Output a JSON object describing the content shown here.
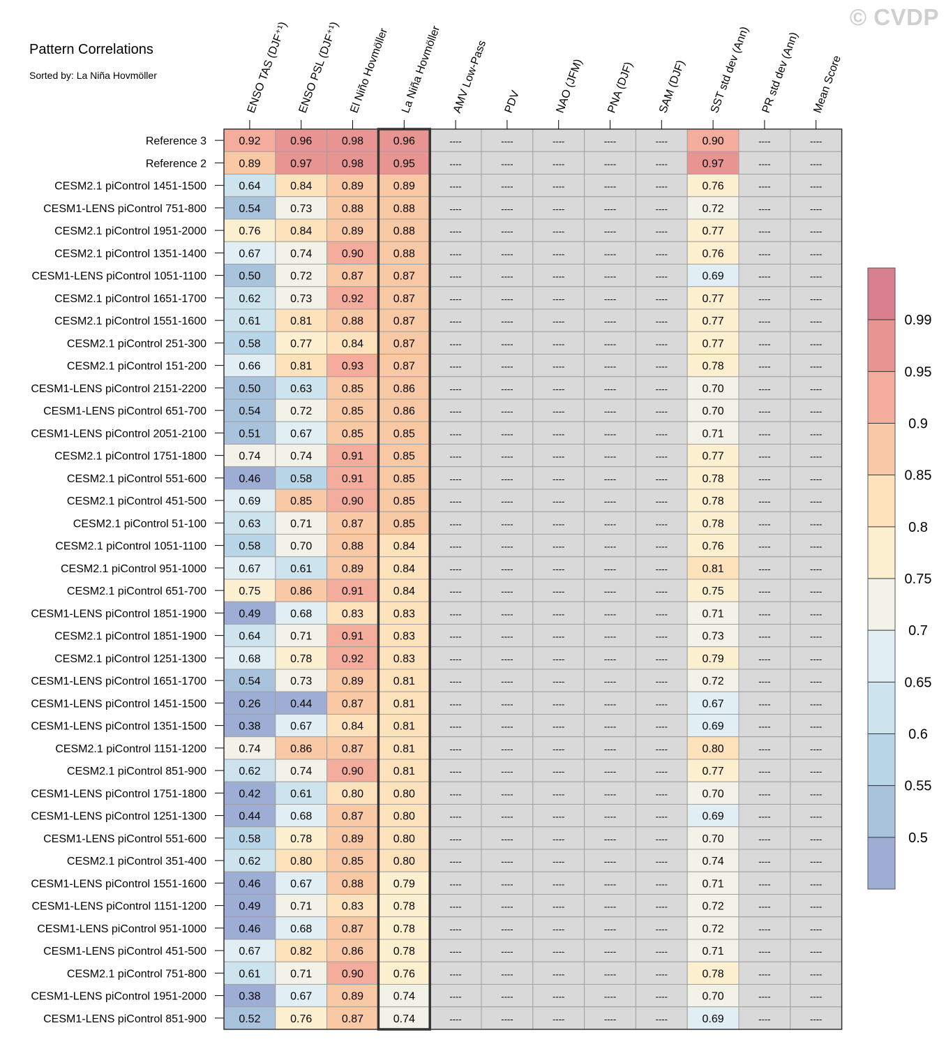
{
  "watermark": "© CVDP",
  "chart_data": {
    "type": "table",
    "title": "Pattern Correlations",
    "subtitle": "Sorted by: La Niña Hovmöller",
    "columns": [
      "ENSO TAS (DJF⁺¹)",
      "ENSO PSL (DJF⁺¹)",
      "El Niño Hovmöller",
      "La Niña Hovmöller",
      "AMV Low-Pass",
      "PDV",
      "NAO (JFM)",
      "PNA (DJF)",
      "SAM (DJF)",
      "SST std dev (Ann)",
      "PR std dev (Ann)",
      "Mean Score"
    ],
    "highlighted_column": "La Niña Hovmöller",
    "missing_label": "----",
    "rows": [
      {
        "label": "Reference 3",
        "values": [
          "0.92",
          "0.96",
          "0.98",
          "0.96",
          null,
          null,
          null,
          null,
          null,
          "0.90",
          null,
          null
        ]
      },
      {
        "label": "Reference 2",
        "values": [
          "0.89",
          "0.97",
          "0.98",
          "0.95",
          null,
          null,
          null,
          null,
          null,
          "0.97",
          null,
          null
        ]
      },
      {
        "label": "CESM2.1 piControl 1451-1500",
        "values": [
          "0.64",
          "0.84",
          "0.89",
          "0.89",
          null,
          null,
          null,
          null,
          null,
          "0.76",
          null,
          null
        ]
      },
      {
        "label": "CESM1-LENS piControl 751-800",
        "values": [
          "0.54",
          "0.73",
          "0.88",
          "0.88",
          null,
          null,
          null,
          null,
          null,
          "0.72",
          null,
          null
        ]
      },
      {
        "label": "CESM2.1 piControl 1951-2000",
        "values": [
          "0.76",
          "0.84",
          "0.89",
          "0.88",
          null,
          null,
          null,
          null,
          null,
          "0.77",
          null,
          null
        ]
      },
      {
        "label": "CESM2.1 piControl 1351-1400",
        "values": [
          "0.67",
          "0.74",
          "0.90",
          "0.88",
          null,
          null,
          null,
          null,
          null,
          "0.76",
          null,
          null
        ]
      },
      {
        "label": "CESM1-LENS piControl 1051-1100",
        "values": [
          "0.50",
          "0.72",
          "0.87",
          "0.87",
          null,
          null,
          null,
          null,
          null,
          "0.69",
          null,
          null
        ]
      },
      {
        "label": "CESM2.1 piControl 1651-1700",
        "values": [
          "0.62",
          "0.73",
          "0.92",
          "0.87",
          null,
          null,
          null,
          null,
          null,
          "0.77",
          null,
          null
        ]
      },
      {
        "label": "CESM2.1 piControl 1551-1600",
        "values": [
          "0.61",
          "0.81",
          "0.88",
          "0.87",
          null,
          null,
          null,
          null,
          null,
          "0.77",
          null,
          null
        ]
      },
      {
        "label": "CESM2.1 piControl 251-300",
        "values": [
          "0.58",
          "0.77",
          "0.84",
          "0.87",
          null,
          null,
          null,
          null,
          null,
          "0.77",
          null,
          null
        ]
      },
      {
        "label": "CESM2.1 piControl 151-200",
        "values": [
          "0.66",
          "0.81",
          "0.93",
          "0.87",
          null,
          null,
          null,
          null,
          null,
          "0.78",
          null,
          null
        ]
      },
      {
        "label": "CESM1-LENS piControl 2151-2200",
        "values": [
          "0.50",
          "0.63",
          "0.85",
          "0.86",
          null,
          null,
          null,
          null,
          null,
          "0.70",
          null,
          null
        ]
      },
      {
        "label": "CESM1-LENS piControl 651-700",
        "values": [
          "0.54",
          "0.72",
          "0.85",
          "0.86",
          null,
          null,
          null,
          null,
          null,
          "0.70",
          null,
          null
        ]
      },
      {
        "label": "CESM1-LENS piControl 2051-2100",
        "values": [
          "0.51",
          "0.67",
          "0.85",
          "0.85",
          null,
          null,
          null,
          null,
          null,
          "0.71",
          null,
          null
        ]
      },
      {
        "label": "CESM2.1 piControl 1751-1800",
        "values": [
          "0.74",
          "0.74",
          "0.91",
          "0.85",
          null,
          null,
          null,
          null,
          null,
          "0.77",
          null,
          null
        ]
      },
      {
        "label": "CESM2.1 piControl 551-600",
        "values": [
          "0.46",
          "0.58",
          "0.91",
          "0.85",
          null,
          null,
          null,
          null,
          null,
          "0.78",
          null,
          null
        ]
      },
      {
        "label": "CESM2.1 piControl 451-500",
        "values": [
          "0.69",
          "0.85",
          "0.90",
          "0.85",
          null,
          null,
          null,
          null,
          null,
          "0.78",
          null,
          null
        ]
      },
      {
        "label": "CESM2.1 piControl 51-100",
        "values": [
          "0.63",
          "0.71",
          "0.87",
          "0.85",
          null,
          null,
          null,
          null,
          null,
          "0.78",
          null,
          null
        ]
      },
      {
        "label": "CESM2.1 piControl 1051-1100",
        "values": [
          "0.58",
          "0.70",
          "0.88",
          "0.84",
          null,
          null,
          null,
          null,
          null,
          "0.76",
          null,
          null
        ]
      },
      {
        "label": "CESM2.1 piControl 951-1000",
        "values": [
          "0.67",
          "0.61",
          "0.89",
          "0.84",
          null,
          null,
          null,
          null,
          null,
          "0.81",
          null,
          null
        ]
      },
      {
        "label": "CESM2.1 piControl 651-700",
        "values": [
          "0.75",
          "0.86",
          "0.91",
          "0.84",
          null,
          null,
          null,
          null,
          null,
          "0.75",
          null,
          null
        ]
      },
      {
        "label": "CESM1-LENS piControl 1851-1900",
        "values": [
          "0.49",
          "0.68",
          "0.83",
          "0.83",
          null,
          null,
          null,
          null,
          null,
          "0.71",
          null,
          null
        ]
      },
      {
        "label": "CESM2.1 piControl 1851-1900",
        "values": [
          "0.64",
          "0.71",
          "0.91",
          "0.83",
          null,
          null,
          null,
          null,
          null,
          "0.73",
          null,
          null
        ]
      },
      {
        "label": "CESM2.1 piControl 1251-1300",
        "values": [
          "0.68",
          "0.78",
          "0.92",
          "0.83",
          null,
          null,
          null,
          null,
          null,
          "0.79",
          null,
          null
        ]
      },
      {
        "label": "CESM1-LENS piControl 1651-1700",
        "values": [
          "0.54",
          "0.73",
          "0.89",
          "0.81",
          null,
          null,
          null,
          null,
          null,
          "0.72",
          null,
          null
        ]
      },
      {
        "label": "CESM1-LENS piControl 1451-1500",
        "values": [
          "0.26",
          "0.44",
          "0.87",
          "0.81",
          null,
          null,
          null,
          null,
          null,
          "0.67",
          null,
          null
        ]
      },
      {
        "label": "CESM1-LENS piControl 1351-1500",
        "values": [
          "0.38",
          "0.67",
          "0.84",
          "0.81",
          null,
          null,
          null,
          null,
          null,
          "0.69",
          null,
          null
        ]
      },
      {
        "label": "CESM2.1 piControl 1151-1200",
        "values": [
          "0.74",
          "0.86",
          "0.87",
          "0.81",
          null,
          null,
          null,
          null,
          null,
          "0.80",
          null,
          null
        ]
      },
      {
        "label": "CESM2.1 piControl 851-900",
        "values": [
          "0.62",
          "0.74",
          "0.90",
          "0.81",
          null,
          null,
          null,
          null,
          null,
          "0.77",
          null,
          null
        ]
      },
      {
        "label": "CESM1-LENS piControl 1751-1800",
        "values": [
          "0.42",
          "0.61",
          "0.80",
          "0.80",
          null,
          null,
          null,
          null,
          null,
          "0.70",
          null,
          null
        ]
      },
      {
        "label": "CESM1-LENS piControl 1251-1300",
        "values": [
          "0.44",
          "0.68",
          "0.87",
          "0.80",
          null,
          null,
          null,
          null,
          null,
          "0.69",
          null,
          null
        ]
      },
      {
        "label": "CESM1-LENS piControl 551-600",
        "values": [
          "0.58",
          "0.78",
          "0.89",
          "0.80",
          null,
          null,
          null,
          null,
          null,
          "0.70",
          null,
          null
        ]
      },
      {
        "label": "CESM2.1 piControl 351-400",
        "values": [
          "0.62",
          "0.80",
          "0.85",
          "0.80",
          null,
          null,
          null,
          null,
          null,
          "0.74",
          null,
          null
        ]
      },
      {
        "label": "CESM1-LENS piControl 1551-1600",
        "values": [
          "0.46",
          "0.67",
          "0.88",
          "0.79",
          null,
          null,
          null,
          null,
          null,
          "0.71",
          null,
          null
        ]
      },
      {
        "label": "CESM1-LENS piControl 1151-1200",
        "values": [
          "0.49",
          "0.71",
          "0.83",
          "0.78",
          null,
          null,
          null,
          null,
          null,
          "0.72",
          null,
          null
        ]
      },
      {
        "label": "CESM1-LENS piControl 951-1000",
        "values": [
          "0.46",
          "0.68",
          "0.87",
          "0.78",
          null,
          null,
          null,
          null,
          null,
          "0.72",
          null,
          null
        ]
      },
      {
        "label": "CESM1-LENS piControl 451-500",
        "values": [
          "0.67",
          "0.82",
          "0.86",
          "0.78",
          null,
          null,
          null,
          null,
          null,
          "0.71",
          null,
          null
        ]
      },
      {
        "label": "CESM2.1 piControl 751-800",
        "values": [
          "0.61",
          "0.71",
          "0.90",
          "0.76",
          null,
          null,
          null,
          null,
          null,
          "0.78",
          null,
          null
        ]
      },
      {
        "label": "CESM1-LENS piControl 1951-2000",
        "values": [
          "0.38",
          "0.67",
          "0.89",
          "0.74",
          null,
          null,
          null,
          null,
          null,
          "0.70",
          null,
          null
        ]
      },
      {
        "label": "CESM1-LENS piControl 851-900",
        "values": [
          "0.52",
          "0.76",
          "0.87",
          "0.74",
          null,
          null,
          null,
          null,
          null,
          "0.69",
          null,
          null
        ]
      }
    ],
    "colorbar": {
      "labels": [
        "0.99",
        "0.95",
        "0.9",
        "0.85",
        "0.8",
        "0.75",
        "0.7",
        "0.65",
        "0.6",
        "0.55",
        "0.5"
      ],
      "thresholds": [
        0.99,
        0.95,
        0.9,
        0.85,
        0.8,
        0.75,
        0.7,
        0.65,
        0.6,
        0.55,
        0.5
      ],
      "colors": [
        "#d87f8d",
        "#e79493",
        "#f4ad9c",
        "#f9c8a4",
        "#fde2bc",
        "#fdf0d0",
        "#f2f2e8",
        "#e1eff4",
        "#cde4ee",
        "#b9d6e8",
        "#a9c3dc",
        "#9dadd3"
      ],
      "missing_color": "#d9d9d9"
    }
  }
}
